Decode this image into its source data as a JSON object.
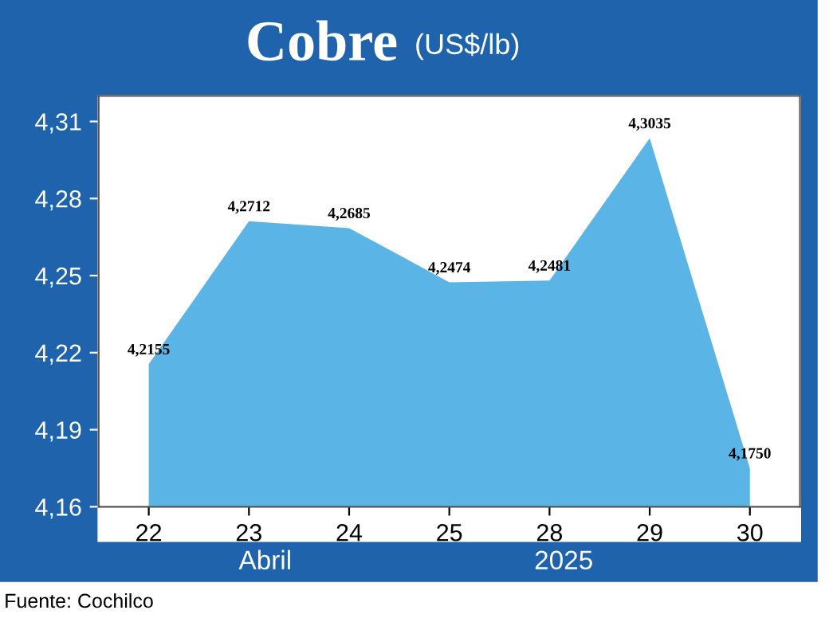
{
  "chart_data": {
    "type": "area",
    "title": "Cobre",
    "subtitle": "(US$/lb)",
    "categories": [
      "22",
      "23",
      "24",
      "25",
      "28",
      "29",
      "30"
    ],
    "values": [
      4.2155,
      4.2712,
      4.2685,
      4.2474,
      4.2481,
      4.3035,
      4.175
    ],
    "value_labels": [
      "4,2155",
      "4,2712",
      "4,2685",
      "4,2474",
      "4,2481",
      "4,3035",
      "4,1750"
    ],
    "color": "#5ab4e6",
    "ylim": [
      4.16,
      4.32
    ],
    "yticks": [
      {
        "value": 4.16,
        "label": "4,16"
      },
      {
        "value": 4.19,
        "label": "4,19"
      },
      {
        "value": 4.22,
        "label": "4,22"
      },
      {
        "value": 4.25,
        "label": "4,25"
      },
      {
        "value": 4.28,
        "label": "4,28"
      },
      {
        "value": 4.31,
        "label": "4,31"
      }
    ],
    "annotations": [
      "Abril",
      "2025",
      "Fuente: Cochilco"
    ],
    "grid": false,
    "legend": false
  }
}
